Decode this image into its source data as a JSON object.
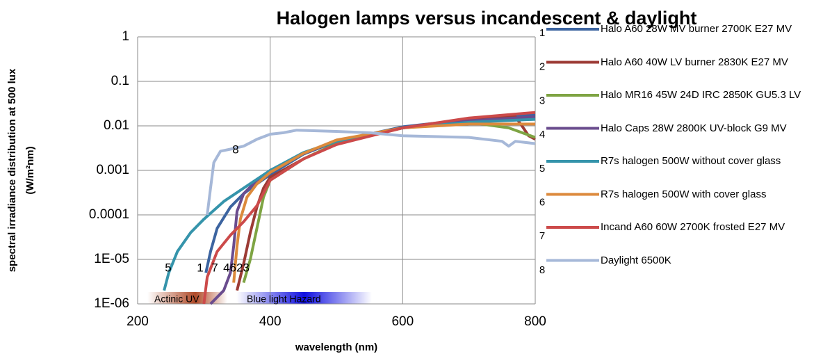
{
  "chart_data": {
    "type": "line",
    "title": "Halogen lamps versus incandescent & daylight",
    "xlabel": "wavelength (nm)",
    "ylabel": [
      "spectral irradiance distribution at 500 lux",
      "(W/m²nm)"
    ],
    "yscale": "log",
    "grid": true,
    "legend": "right",
    "xlim": [
      200,
      800
    ],
    "xticks": [
      200,
      400,
      600,
      800
    ],
    "ylim": [
      1e-06,
      1
    ],
    "yticks": [
      {
        "value": 1e-06,
        "label": "1E-06"
      },
      {
        "value": 1e-05,
        "label": "1E-05"
      },
      0.0001,
      0.001,
      0.01,
      0.1,
      1
    ],
    "annotations": [
      "5",
      "1",
      "7",
      "4623",
      "8"
    ],
    "bands": [
      "Actinic UV",
      "Blue light Hazard"
    ],
    "series": [
      {
        "name": "Halo A60 28W MV burner 2700K E27 MV",
        "label": "1",
        "color": "#3c64a0",
        "x": [
          303,
          310,
          320,
          340,
          360,
          380,
          400,
          450,
          500,
          600,
          700,
          800
        ],
        "values": [
          5e-06,
          1.5e-05,
          5e-05,
          0.00015,
          0.0003,
          0.0005,
          0.0008,
          0.0023,
          0.0045,
          0.0095,
          0.014,
          0.018
        ]
      },
      {
        "name": "Halo A60 40W LV burner 2830K E27 MV",
        "label": "2",
        "color": "#9c3b35",
        "x": [
          350,
          360,
          370,
          380,
          390,
          400,
          450,
          500,
          600,
          700,
          770,
          780,
          790,
          800
        ],
        "values": [
          2e-06,
          8e-06,
          4e-05,
          0.00015,
          0.0004,
          0.0007,
          0.0018,
          0.004,
          0.009,
          0.014,
          0.016,
          0.01,
          0.006,
          0.005
        ]
      },
      {
        "name": "Halo MR16 45W 24D IRC 2850K GU5.3 LV",
        "label": "3",
        "color": "#7ea443",
        "x": [
          360,
          370,
          380,
          390,
          400,
          450,
          500,
          600,
          700,
          760,
          800
        ],
        "values": [
          3e-06,
          1e-05,
          5e-05,
          0.00025,
          0.0006,
          0.0018,
          0.004,
          0.009,
          0.012,
          0.009,
          0.0055
        ]
      },
      {
        "name": "Halo Caps 28W 2800K UV-block G9 MV",
        "label": "4",
        "color": "#6a4c8e",
        "x": [
          310,
          330,
          340,
          345,
          350,
          360,
          380,
          400,
          450,
          500,
          600,
          700,
          800
        ],
        "values": [
          1e-06,
          2e-06,
          5e-06,
          2e-05,
          0.00012,
          0.0003,
          0.0006,
          0.001,
          0.0024,
          0.0045,
          0.009,
          0.013,
          0.016
        ]
      },
      {
        "name": "R7s halogen 500W without cover glass",
        "label": "5",
        "color": "#3594ab",
        "x": [
          240,
          247,
          260,
          280,
          300,
          330,
          360,
          400,
          450,
          500,
          600,
          700,
          800
        ],
        "values": [
          2e-06,
          5e-06,
          1.5e-05,
          4e-05,
          8e-05,
          0.0002,
          0.0004,
          0.001,
          0.0025,
          0.0045,
          0.009,
          0.012,
          0.014
        ]
      },
      {
        "name": "R7s halogen 500W with cover glass",
        "label": "6",
        "color": "#dc8a3c",
        "x": [
          345,
          350,
          355,
          365,
          380,
          400,
          450,
          500,
          600,
          700,
          800
        ],
        "values": [
          3e-06,
          2e-05,
          8e-05,
          0.00025,
          0.0005,
          0.0009,
          0.0024,
          0.0048,
          0.009,
          0.011,
          0.011
        ]
      },
      {
        "name": "Incand A60 60W 2700K frosted E27 MV",
        "label": "7",
        "color": "#cc4a4a",
        "x": [
          300,
          305,
          320,
          340,
          360,
          380,
          400,
          450,
          500,
          600,
          700,
          800
        ],
        "values": [
          1e-06,
          4e-06,
          1.5e-05,
          3.5e-05,
          7e-05,
          0.00016,
          0.0006,
          0.0018,
          0.0038,
          0.009,
          0.015,
          0.02
        ]
      },
      {
        "name": "Daylight 6500K",
        "label": "8",
        "color": "#a6b8d8",
        "x": [
          305,
          310,
          315,
          325,
          340,
          360,
          380,
          400,
          420,
          440,
          500,
          550,
          600,
          700,
          750,
          760,
          770,
          800
        ],
        "values": [
          0.0001,
          0.0004,
          0.0015,
          0.0027,
          0.003,
          0.0035,
          0.005,
          0.0065,
          0.007,
          0.008,
          0.0075,
          0.007,
          0.006,
          0.0055,
          0.0045,
          0.0035,
          0.0045,
          0.004
        ]
      }
    ]
  }
}
